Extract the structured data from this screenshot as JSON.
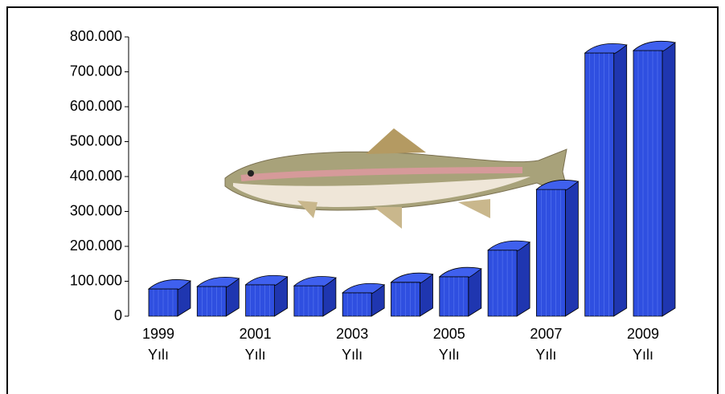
{
  "chart_data": {
    "type": "bar",
    "categories": [
      "1999 Yılı",
      null,
      "2001 Yılı",
      null,
      "2003 Yılı",
      null,
      "2005 Yılı",
      null,
      "2007 Yılı",
      null,
      "2009 Yılı"
    ],
    "values": [
      78000,
      85000,
      90000,
      87000,
      67000,
      97000,
      113000,
      189000,
      363000,
      754000,
      761000
    ],
    "color": "#2f4fe0",
    "ylim": [
      0,
      800000
    ],
    "yticks": [
      0,
      {
        "value": 100000,
        "label": "100.000"
      },
      {
        "value": 200000,
        "label": "200.000"
      },
      {
        "value": 300000,
        "label": "300.000"
      },
      {
        "value": 400000,
        "label": "400.000"
      },
      {
        "value": 500000,
        "label": "500.000"
      },
      {
        "value": 600000,
        "label": "600.000"
      },
      {
        "value": 700000,
        "label": "700.000"
      },
      {
        "value": 800000,
        "label": "800.000"
      }
    ]
  }
}
